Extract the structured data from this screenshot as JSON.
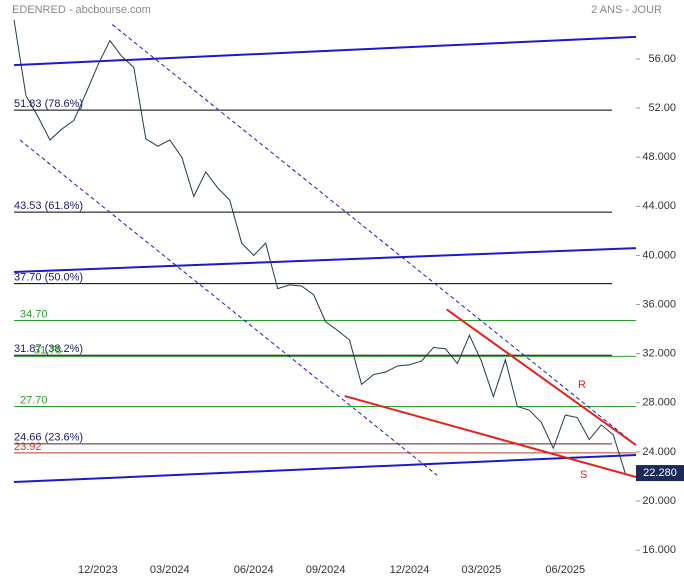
{
  "chart_data": {
    "type": "line",
    "title": "EDENRED - abcbourse.com",
    "subtitle": "2 ANS - JOUR",
    "categories": [
      null,
      null,
      null,
      null,
      null,
      null,
      null,
      "12/2023",
      null,
      null,
      null,
      null,
      null,
      "03/2024",
      null,
      null,
      null,
      null,
      null,
      null,
      "06/2024",
      null,
      null,
      null,
      null,
      null,
      "09/2024",
      null,
      null,
      null,
      null,
      null,
      null,
      "12/2024",
      null,
      null,
      null,
      null,
      null,
      "03/2025",
      null,
      null,
      null,
      null,
      null,
      null,
      "06/2025",
      null,
      null,
      null,
      null,
      null
    ],
    "values": [
      59.2,
      53.0,
      51.3,
      49.4,
      50.3,
      51.0,
      53.2,
      55.5,
      57.5,
      56.2,
      55.3,
      49.5,
      48.9,
      49.4,
      48.0,
      44.8,
      46.8,
      45.5,
      44.5,
      41.0,
      40.0,
      41.0,
      37.3,
      37.6,
      37.5,
      36.8,
      34.6,
      33.9,
      33.1,
      29.5,
      30.3,
      30.5,
      31.0,
      31.1,
      31.4,
      32.5,
      32.4,
      31.2,
      33.5,
      31.4,
      28.5,
      31.5,
      27.7,
      27.4,
      26.4,
      24.3,
      27.0,
      26.8,
      25.0,
      26.2,
      25.4,
      22.28
    ],
    "color": "#1f3b4d",
    "xlim": [
      0,
      51.9
    ],
    "ylim": [
      15.2,
      60.8
    ],
    "yticks": [
      {
        "value": 16,
        "label": "16.000"
      },
      {
        "value": 20,
        "label": "20.000"
      },
      {
        "value": 24,
        "label": "24.000"
      },
      {
        "value": 28,
        "label": "28.000"
      },
      {
        "value": 32,
        "label": "32.000"
      },
      {
        "value": 36,
        "label": "36.000"
      },
      {
        "value": 40,
        "label": "40.000"
      },
      {
        "value": 44,
        "label": "44.000"
      },
      {
        "value": 48,
        "label": "48.000"
      },
      {
        "value": 52,
        "label": "52.00"
      },
      {
        "value": 56,
        "label": "56.00"
      }
    ],
    "last_value": {
      "value": 22.28,
      "label": "22.280"
    },
    "levels": [
      {
        "value": 51.83,
        "label": "51.83  (78.6%)",
        "color": "#000000"
      },
      {
        "value": 43.53,
        "label": "43.53  (61.8%)",
        "color": "#000000"
      },
      {
        "value": 37.7,
        "label": "37.70  (50.0%)",
        "color": "#000000"
      },
      {
        "value": 31.87,
        "label": "31.87  (38.2%)",
        "color": "#000000"
      },
      {
        "value": 24.66,
        "label": "24.66  (23.6%)",
        "color": "#6b1a1a"
      },
      {
        "value": 34.7,
        "label": "34.70",
        "color": "#2ca02c"
      },
      {
        "value": 31.78,
        "label": "31.78",
        "color": "#2ca02c"
      },
      {
        "value": 27.7,
        "label": "27.70",
        "color": "#2ca02c"
      },
      {
        "value": 23.92,
        "label": "23.92",
        "color": "#c0392b"
      }
    ],
    "trendlines": [
      {
        "x": [
          0,
          51.9
        ],
        "values": [
          55.5,
          57.8
        ],
        "color": "#1a1acc",
        "style": "solid"
      },
      {
        "x": [
          0,
          51.9
        ],
        "values": [
          38.65,
          40.6
        ],
        "color": "#1a1acc",
        "style": "solid"
      },
      {
        "x": [
          0,
          51.9
        ],
        "values": [
          21.55,
          23.75
        ],
        "color": "#1a1acc",
        "style": "solid"
      },
      {
        "x": [
          8.2,
          51.9
        ],
        "values": [
          58.8,
          24.56
        ],
        "color": "#1a1acc",
        "style": "dashed"
      },
      {
        "x": [
          0.5,
          35.3
        ],
        "values": [
          49.4,
          22.1
        ],
        "color": "#1a1acc",
        "style": "dashed"
      },
      {
        "x": [
          36.1,
          51.9
        ],
        "values": [
          35.6,
          24.56
        ],
        "color": "#e8201a",
        "style": "solid"
      },
      {
        "x": [
          27.6,
          51.9
        ],
        "values": [
          28.55,
          21.96
        ],
        "color": "#e8201a",
        "style": "solid"
      }
    ],
    "annotations": [
      "R",
      "S"
    ]
  }
}
